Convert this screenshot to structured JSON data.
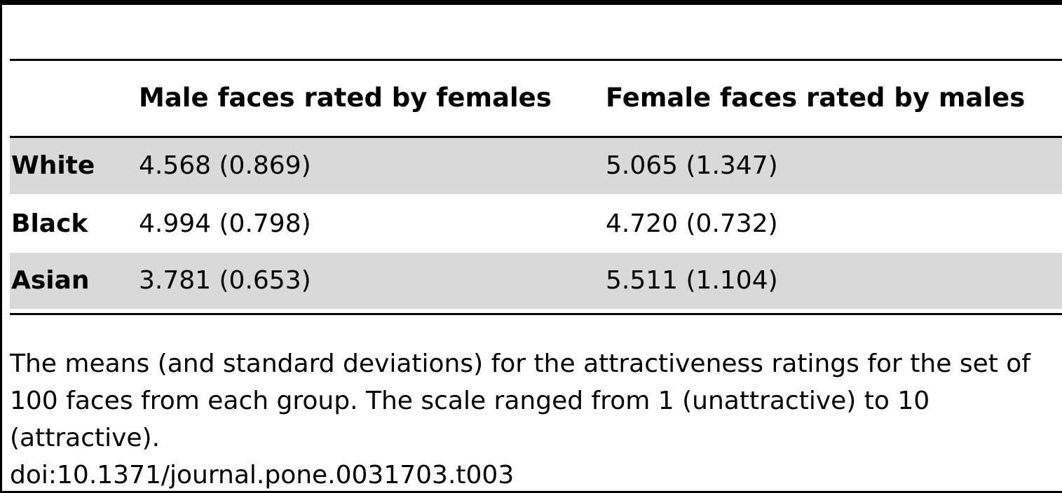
{
  "table": {
    "columns": [
      "Male faces rated by females",
      "Female faces rated by males"
    ],
    "rows": [
      {
        "label": "White",
        "values": [
          "4.568 (0.869)",
          "5.065 (1.347)"
        ]
      },
      {
        "label": "Black",
        "values": [
          "4.994 (0.798)",
          "4.720 (0.732)"
        ]
      },
      {
        "label": "Asian",
        "values": [
          "3.781 (0.653)",
          "5.511 (1.104)"
        ]
      }
    ],
    "shaded_row_color": "#d9d9d9"
  },
  "caption": "The means (and standard deviations) for the attractiveness ratings for the set of 100 faces from each group. The scale ranged from 1 (unattractive) to 10 (attractive).",
  "doi": "doi:10.1371/journal.pone.0031703.t003"
}
